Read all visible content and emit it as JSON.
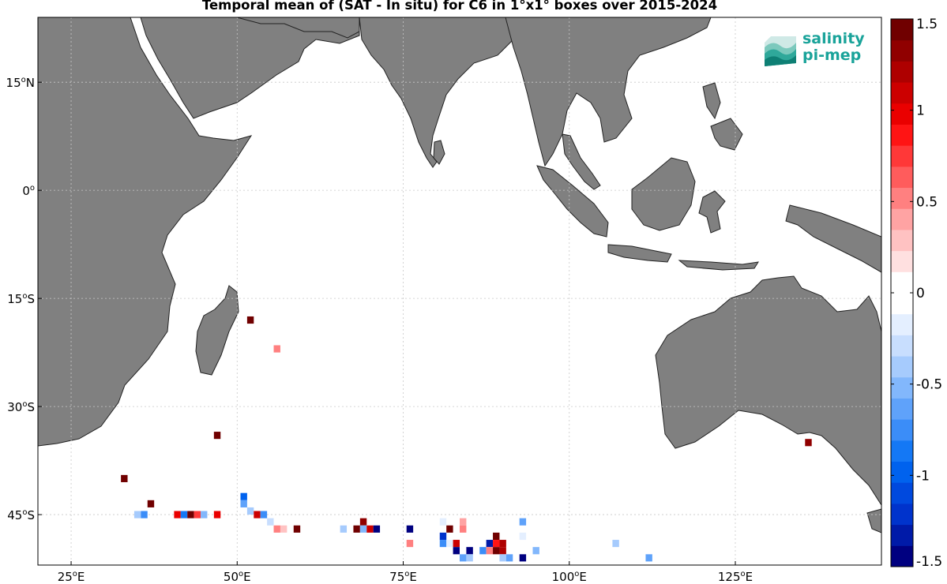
{
  "title": "Temporal mean of (SAT - In situ) for C6 in 1°x1° boxes over 2015-2024",
  "logo": {
    "line1": "salinity",
    "line2": "pi-mep",
    "color": "#1aa39a"
  },
  "map": {
    "lon_range": [
      20,
      147
    ],
    "lat_range": [
      -52,
      24
    ],
    "lon_ticks": [
      {
        "value": 25,
        "deg": "25",
        "suffix": "E"
      },
      {
        "value": 50,
        "deg": "50",
        "suffix": "E"
      },
      {
        "value": 75,
        "deg": "75",
        "suffix": "E"
      },
      {
        "value": 100,
        "deg": "100",
        "suffix": "E"
      },
      {
        "value": 125,
        "deg": "125",
        "suffix": "E"
      }
    ],
    "lat_ticks": [
      {
        "value": 15,
        "deg": "15",
        "suffix": "N"
      },
      {
        "value": 0,
        "deg": "0",
        "suffix": ""
      },
      {
        "value": -15,
        "deg": "15",
        "suffix": "S"
      },
      {
        "value": -30,
        "deg": "30",
        "suffix": "S"
      },
      {
        "value": -45,
        "deg": "45",
        "suffix": "S"
      }
    ],
    "land_color": "#808080",
    "grid": true
  },
  "colorbar": {
    "min": -1.5,
    "max": 1.5,
    "tick_labels": [
      {
        "value": 1.5,
        "label": "1.5"
      },
      {
        "value": 1,
        "label": "1"
      },
      {
        "value": 0.5,
        "label": "0.5"
      },
      {
        "value": 0,
        "label": "0"
      },
      {
        "value": -0.5,
        "label": "-0.5"
      },
      {
        "value": -1,
        "label": "-1"
      },
      {
        "value": -1.5,
        "label": "-1.5"
      }
    ],
    "colors": [
      "#000080",
      "#001aa8",
      "#0033cc",
      "#0049de",
      "#0062ee",
      "#1478f5",
      "#3b8df8",
      "#5fa2fa",
      "#82b7fc",
      "#a6cbfd",
      "#c8defe",
      "#e4efff",
      "#ffffff",
      "#ffffff",
      "#ffe0e0",
      "#ffc2c2",
      "#ffa3a3",
      "#ff8080",
      "#ff5c5c",
      "#ff3838",
      "#ff1414",
      "#ea0000",
      "#cc0000",
      "#ae0000",
      "#900000",
      "#700000"
    ]
  },
  "chart_data": {
    "type": "heatmap",
    "x_unit": "longitude (deg E)",
    "y_unit": "latitude (deg)",
    "points": [
      {
        "lon": 52,
        "lat": -18,
        "value": 1.4
      },
      {
        "lon": 56,
        "lat": -22,
        "value": 0.5
      },
      {
        "lon": 47,
        "lat": -34,
        "value": 1.5
      },
      {
        "lon": 33,
        "lat": -40,
        "value": 1.5
      },
      {
        "lon": 37,
        "lat": -43.5,
        "value": 1.5
      },
      {
        "lon": 35,
        "lat": -45,
        "value": -0.4
      },
      {
        "lon": 36,
        "lat": -45,
        "value": -0.8
      },
      {
        "lon": 41,
        "lat": -45,
        "value": 1.0
      },
      {
        "lon": 42,
        "lat": -45,
        "value": -0.9
      },
      {
        "lon": 43,
        "lat": -45,
        "value": 1.4
      },
      {
        "lon": 44,
        "lat": -45,
        "value": 0.8
      },
      {
        "lon": 45,
        "lat": -45,
        "value": -0.5
      },
      {
        "lon": 47,
        "lat": -45,
        "value": 1.0
      },
      {
        "lon": 51,
        "lat": -42.5,
        "value": -1.0
      },
      {
        "lon": 51,
        "lat": -43.5,
        "value": -0.6
      },
      {
        "lon": 52,
        "lat": -44.5,
        "value": -0.4
      },
      {
        "lon": 53,
        "lat": -45,
        "value": 1.1
      },
      {
        "lon": 54,
        "lat": -45,
        "value": -0.7
      },
      {
        "lon": 55,
        "lat": -46,
        "value": -0.3
      },
      {
        "lon": 56,
        "lat": -47,
        "value": 0.5
      },
      {
        "lon": 57,
        "lat": -47,
        "value": 0.3
      },
      {
        "lon": 59,
        "lat": -47,
        "value": 1.4
      },
      {
        "lon": 66,
        "lat": -47,
        "value": -0.4
      },
      {
        "lon": 69,
        "lat": -46,
        "value": 1.3
      },
      {
        "lon": 68,
        "lat": -47,
        "value": 1.4
      },
      {
        "lon": 69,
        "lat": -47,
        "value": -0.5
      },
      {
        "lon": 70,
        "lat": -47,
        "value": 1.1
      },
      {
        "lon": 71,
        "lat": -47,
        "value": -1.5
      },
      {
        "lon": 76,
        "lat": -47,
        "value": -1.5
      },
      {
        "lon": 80,
        "lat": -46,
        "value": -0.1
      },
      {
        "lon": 81,
        "lat": -46,
        "value": -0.2
      },
      {
        "lon": 84,
        "lat": -46,
        "value": 0.4
      },
      {
        "lon": 82,
        "lat": -47,
        "value": 1.4
      },
      {
        "lon": 84,
        "lat": -47,
        "value": 0.5
      },
      {
        "lon": 81,
        "lat": -48,
        "value": -1.2
      },
      {
        "lon": 76,
        "lat": -49,
        "value": 0.5
      },
      {
        "lon": 81,
        "lat": -49,
        "value": -0.7
      },
      {
        "lon": 82,
        "lat": -49,
        "value": -0.2
      },
      {
        "lon": 83,
        "lat": -49,
        "value": 1.1
      },
      {
        "lon": 83,
        "lat": -50,
        "value": -1.5
      },
      {
        "lon": 85,
        "lat": -50,
        "value": -1.4
      },
      {
        "lon": 87,
        "lat": -50,
        "value": -0.7
      },
      {
        "lon": 84,
        "lat": -51,
        "value": -0.6
      },
      {
        "lon": 85,
        "lat": -51,
        "value": -0.4
      },
      {
        "lon": 88,
        "lat": -49,
        "value": -1.3
      },
      {
        "lon": 89,
        "lat": -48,
        "value": 1.5
      },
      {
        "lon": 89,
        "lat": -49,
        "value": 0.9
      },
      {
        "lon": 90,
        "lat": -49,
        "value": 1.2
      },
      {
        "lon": 88,
        "lat": -50,
        "value": 0.5
      },
      {
        "lon": 89,
        "lat": -50,
        "value": 1.5
      },
      {
        "lon": 90,
        "lat": -50,
        "value": 1.2
      },
      {
        "lon": 90,
        "lat": -51,
        "value": -0.4
      },
      {
        "lon": 91,
        "lat": -51,
        "value": -0.6
      },
      {
        "lon": 93,
        "lat": -51,
        "value": -1.5
      },
      {
        "lon": 93,
        "lat": -48,
        "value": -0.2
      },
      {
        "lon": 93,
        "lat": -46,
        "value": -0.6
      },
      {
        "lon": 95,
        "lat": -50,
        "value": -0.5
      },
      {
        "lon": 107,
        "lat": -49,
        "value": -0.4
      },
      {
        "lon": 112,
        "lat": -51,
        "value": -0.6
      },
      {
        "lon": 136,
        "lat": -35,
        "value": 1.3
      }
    ]
  }
}
